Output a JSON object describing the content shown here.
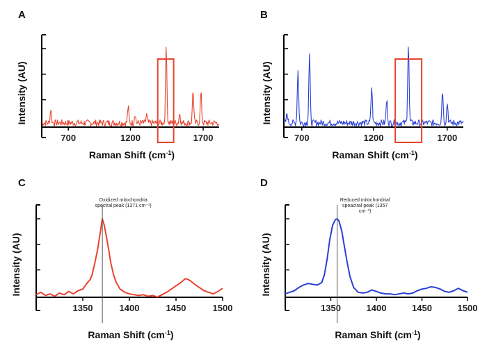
{
  "chart_data": [
    {
      "panel": "A",
      "type": "line",
      "color": "#e8432f",
      "xlabel": "Raman Shift (cm",
      "xlabel_sup": "-1",
      "xlabel_end": ")",
      "ylabel": "Intensity (AU)",
      "xlim": [
        550,
        1720
      ],
      "ylim": [
        0,
        1
      ],
      "xticks": [
        "700",
        "1200",
        "1700"
      ],
      "highlight": [
        1315,
        1420
      ],
      "peaks": [
        [
          610,
          0.18
        ],
        [
          1120,
          0.2
        ],
        [
          1165,
          0.12
        ],
        [
          1242,
          0.1
        ],
        [
          1371,
          1.0
        ],
        [
          1460,
          0.12
        ],
        [
          1548,
          0.42
        ],
        [
          1600,
          0.38
        ]
      ],
      "series": [
        {
          "x": [],
          "y": []
        }
      ]
    },
    {
      "panel": "B",
      "type": "line",
      "color": "#2a3fd6",
      "xlabel": "Raman Shift (cm",
      "xlabel_sup": "-1",
      "xlabel_end": ")",
      "ylabel": "Intensity (AU)",
      "xlim": [
        580,
        1700
      ],
      "ylim": [
        0,
        1
      ],
      "xticks": [
        "700",
        "1200",
        "1700"
      ],
      "highlight": [
        1275,
        1440
      ],
      "peaks": [
        [
          600,
          0.12
        ],
        [
          668,
          0.67
        ],
        [
          740,
          0.85
        ],
        [
          1128,
          0.45
        ],
        [
          1222,
          0.28
        ],
        [
          1357,
          1.0
        ],
        [
          1570,
          0.42
        ],
        [
          1600,
          0.25
        ]
      ],
      "series": [
        {
          "x": [],
          "y": []
        }
      ]
    },
    {
      "panel": "C",
      "type": "line",
      "color": "#e8432f",
      "xlabel": "Raman Shift (cm",
      "xlabel_sup": "-1",
      "xlabel_end": ")",
      "ylabel": "Intensity (AU)",
      "xlim": [
        1300,
        1500
      ],
      "ylim": [
        0,
        1
      ],
      "xticks": [
        "1350",
        "1400",
        "1450",
        "1500"
      ],
      "annotation": {
        "x": 1371,
        "lines": [
          "Oxidized mitochondria",
          "spectral peak (1371 cm⁻¹)"
        ]
      },
      "series": [
        {
          "x": [
            1300,
            1305,
            1310,
            1315,
            1320,
            1325,
            1330,
            1335,
            1340,
            1345,
            1350,
            1355,
            1358,
            1360,
            1363,
            1366,
            1369,
            1371,
            1373,
            1375,
            1378,
            1380,
            1383,
            1386,
            1390,
            1395,
            1400,
            1405,
            1410,
            1415,
            1420,
            1425,
            1430,
            1435,
            1440,
            1445,
            1450,
            1455,
            1460,
            1463,
            1466,
            1470,
            1475,
            1480,
            1485,
            1490,
            1495,
            1500
          ],
          "y": [
            0.05,
            0.08,
            0.04,
            0.06,
            0.03,
            0.07,
            0.05,
            0.09,
            0.06,
            0.1,
            0.12,
            0.2,
            0.24,
            0.3,
            0.45,
            0.62,
            0.85,
            1.0,
            0.92,
            0.8,
            0.6,
            0.45,
            0.3,
            0.2,
            0.12,
            0.08,
            0.06,
            0.05,
            0.04,
            0.05,
            0.03,
            0.04,
            0.02,
            0.05,
            0.08,
            0.12,
            0.16,
            0.2,
            0.25,
            0.24,
            0.22,
            0.18,
            0.14,
            0.1,
            0.08,
            0.06,
            0.09,
            0.13
          ]
        }
      ]
    },
    {
      "panel": "D",
      "type": "line",
      "color": "#2a3fd6",
      "xlabel": "Raman Shift (cm",
      "xlabel_sup": "-1",
      "xlabel_end": ")",
      "ylabel": "Intensity (AU)",
      "xlim": [
        1300,
        1500
      ],
      "ylim": [
        0,
        1
      ],
      "xticks": [
        "1350",
        "1400",
        "1450",
        "1500"
      ],
      "annotation": {
        "x": 1357,
        "lines": [
          "Reduced mitochondrial",
          "speactral peak (1357",
          "cm⁻¹)"
        ]
      },
      "series": [
        {
          "x": [
            1300,
            1305,
            1310,
            1315,
            1320,
            1325,
            1330,
            1335,
            1340,
            1343,
            1346,
            1349,
            1352,
            1355,
            1357,
            1359,
            1362,
            1365,
            1368,
            1371,
            1375,
            1380,
            1385,
            1390,
            1395,
            1400,
            1405,
            1410,
            1415,
            1420,
            1425,
            1430,
            1435,
            1440,
            1445,
            1450,
            1455,
            1460,
            1465,
            1470,
            1475,
            1480,
            1485,
            1490,
            1495,
            1500
          ],
          "y": [
            0.06,
            0.08,
            0.1,
            0.14,
            0.17,
            0.19,
            0.18,
            0.17,
            0.2,
            0.3,
            0.5,
            0.75,
            0.92,
            0.99,
            1.0,
            0.97,
            0.85,
            0.65,
            0.45,
            0.28,
            0.14,
            0.08,
            0.07,
            0.08,
            0.11,
            0.09,
            0.07,
            0.06,
            0.06,
            0.05,
            0.06,
            0.07,
            0.06,
            0.07,
            0.1,
            0.12,
            0.13,
            0.15,
            0.14,
            0.12,
            0.09,
            0.08,
            0.1,
            0.13,
            0.1,
            0.08
          ]
        }
      ]
    }
  ]
}
